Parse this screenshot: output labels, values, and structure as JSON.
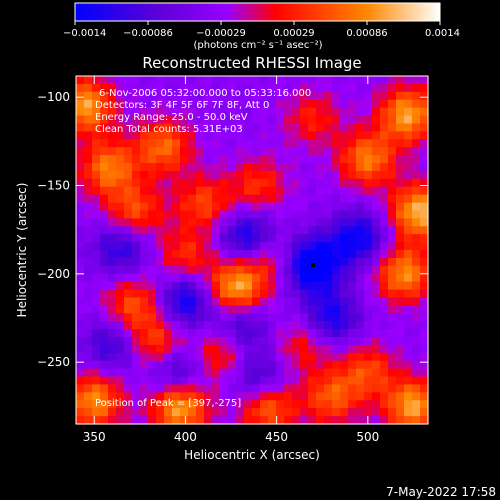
{
  "chart_data": {
    "type": "heatmap",
    "title": "Reconstructed RHESSI Image",
    "xlabel": "Heliocentric X (arcsec)",
    "ylabel": "Heliocentric Y (arcsec)",
    "xlim": [
      340,
      533
    ],
    "ylim": [
      -285,
      -88
    ],
    "xticks": [
      350,
      400,
      450,
      500
    ],
    "yticks": [
      -100,
      -150,
      -200,
      -250
    ],
    "colorbar": {
      "unit_label": "(photons cm⁻² s⁻¹ asec⁻²)",
      "range": [
        -0.0014,
        0.0014
      ],
      "tick_labels": [
        "−0.0014",
        "−0.00086",
        "−0.00029",
        "0.00029",
        "0.00086",
        "0.0014"
      ],
      "colormap": [
        "#0000ff",
        "#5a00d8",
        "#9a00ff",
        "#ff0000",
        "#ff8800",
        "#ffffff"
      ]
    },
    "annotations": {
      "time_range": "6-Nov-2006 05:32:00.000 to 05:33:16.000",
      "detectors": "Detectors: 3F 4F 5F 6F 7F 8F, Att 0",
      "energy": "Energy Range: 25.0 - 50.0 keV",
      "method": "Clean   Total counts: 5.31E+03",
      "peak": "Position of Peak = [397,-275]"
    },
    "bright_sources": [
      {
        "x": 345,
        "y": -105,
        "value": 0.0013
      },
      {
        "x": 358,
        "y": -140,
        "value": 0.0011
      },
      {
        "x": 372,
        "y": -165,
        "value": 0.0009
      },
      {
        "x": 388,
        "y": -128,
        "value": 0.001
      },
      {
        "x": 410,
        "y": -160,
        "value": 0.0008
      },
      {
        "x": 440,
        "y": -150,
        "value": 0.0007
      },
      {
        "x": 470,
        "y": -112,
        "value": 0.0006
      },
      {
        "x": 500,
        "y": -135,
        "value": 0.0011
      },
      {
        "x": 522,
        "y": -110,
        "value": 0.0013
      },
      {
        "x": 528,
        "y": -165,
        "value": 0.0014
      },
      {
        "x": 520,
        "y": -200,
        "value": 0.0012
      },
      {
        "x": 428,
        "y": -208,
        "value": 0.0014
      },
      {
        "x": 400,
        "y": -190,
        "value": 0.0007
      },
      {
        "x": 445,
        "y": -190,
        "value": 0.0007
      },
      {
        "x": 372,
        "y": -218,
        "value": 0.0009
      },
      {
        "x": 385,
        "y": -240,
        "value": 0.0009
      },
      {
        "x": 420,
        "y": -245,
        "value": 0.0008
      },
      {
        "x": 465,
        "y": -240,
        "value": 0.0006
      },
      {
        "x": 500,
        "y": -255,
        "value": 0.0008
      },
      {
        "x": 350,
        "y": -272,
        "value": 0.0012
      },
      {
        "x": 397,
        "y": -275,
        "value": 0.0014
      },
      {
        "x": 445,
        "y": -275,
        "value": 0.0011
      },
      {
        "x": 480,
        "y": -270,
        "value": 0.0009
      },
      {
        "x": 525,
        "y": -275,
        "value": 0.0013
      }
    ],
    "negative_sources": [
      {
        "x": 470,
        "y": -195,
        "value": -0.0014
      },
      {
        "x": 400,
        "y": -215,
        "value": -0.001
      },
      {
        "x": 435,
        "y": -180,
        "value": -0.0011
      },
      {
        "x": 495,
        "y": -180,
        "value": -0.001
      },
      {
        "x": 365,
        "y": -185,
        "value": -0.0008
      },
      {
        "x": 430,
        "y": -230,
        "value": -0.0008
      },
      {
        "x": 395,
        "y": -255,
        "value": -0.0009
      },
      {
        "x": 480,
        "y": -225,
        "value": -0.0009
      },
      {
        "x": 360,
        "y": -240,
        "value": -0.0007
      },
      {
        "x": 440,
        "y": -260,
        "value": -0.0008
      }
    ],
    "marker": {
      "x": 470,
      "y": -195
    }
  },
  "footer": {
    "timestamp": "7-May-2022 17:58"
  }
}
